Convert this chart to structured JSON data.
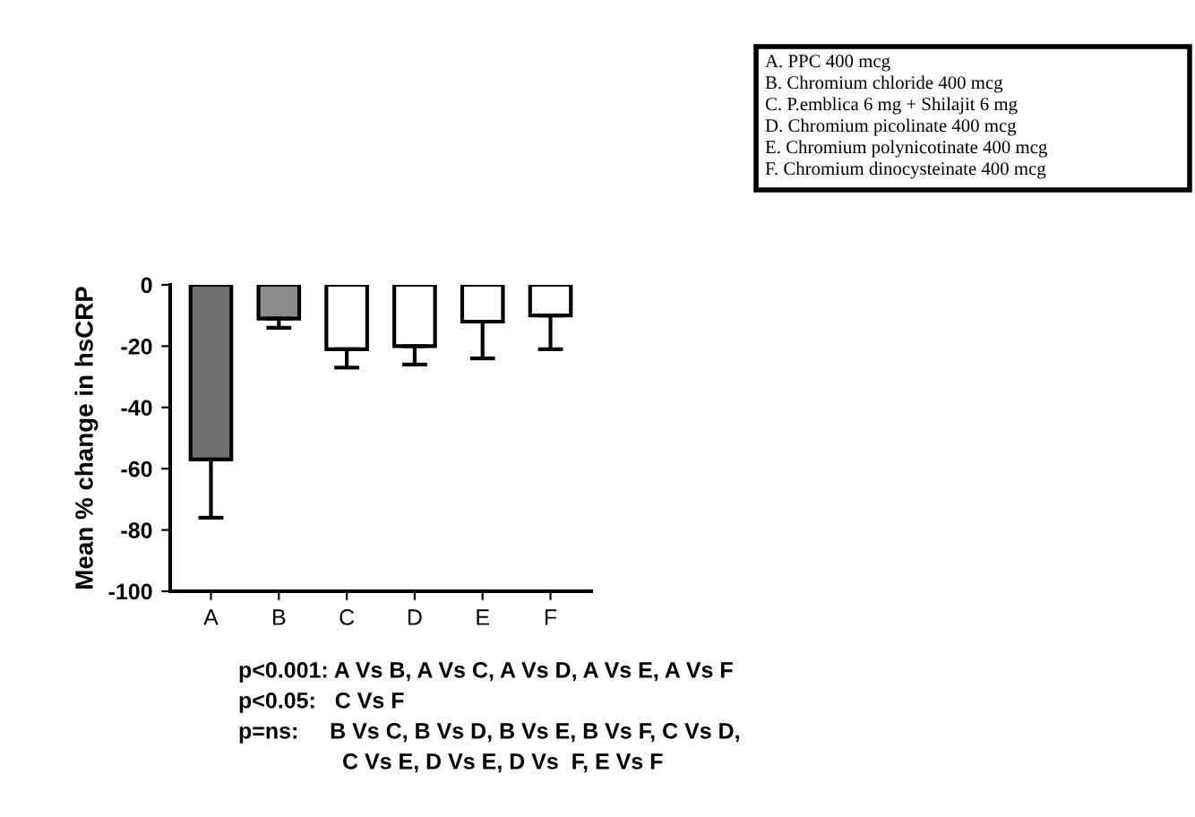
{
  "chart_data": {
    "type": "bar",
    "ylabel": "Mean % change in hsCRP",
    "categories": [
      "A",
      "B",
      "C",
      "D",
      "E",
      "F"
    ],
    "values": [
      -57,
      -11,
      -21,
      -20,
      -12,
      -10
    ],
    "errors": [
      [
        -76,
        -57
      ],
      [
        -14,
        -11
      ],
      [
        -27,
        -21
      ],
      [
        -26,
        -20
      ],
      [
        -24,
        -12
      ],
      [
        -21,
        -10
      ]
    ],
    "colors": [
      "#707070",
      "#8c8c8c",
      "#ffffff",
      "#ffffff",
      "#ffffff",
      "#ffffff"
    ],
    "ylim": [
      -100,
      0
    ],
    "yticks": [
      -100,
      -80,
      -60,
      -40,
      -20,
      0
    ],
    "grid": false,
    "legend": false,
    "annotations": [
      "A. PPC 400 mcg",
      "B. Chromium chloride 400 mcg",
      "C. P.emblica 6 mg + Shilajit 6 mg",
      "D. Chromium picolinate 400 mcg",
      "E. Chromium polynicotinate 400 mcg",
      "F. Chromium dinocysteinate 400 mcg",
      "p<0.001: A Vs B, A Vs C, A Vs D, A Vs E, A Vs F",
      "p<0.05:   C Vs F",
      "p=ns:     B Vs C, B Vs D, B Vs E, B Vs F, C Vs D,",
      "C Vs E, D Vs E, D Vs  F, E Vs F"
    ]
  }
}
